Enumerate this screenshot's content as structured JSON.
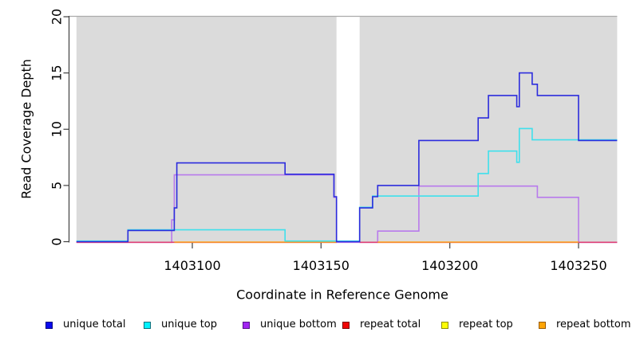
{
  "chart_data": {
    "type": "line",
    "subtype": "step-coverage",
    "title": "",
    "xlabel": "Coordinate in Reference Genome",
    "ylabel": "Read Coverage Depth",
    "x_ticks": [
      1403100,
      1403150,
      1403200,
      1403250
    ],
    "y_ticks": [
      0,
      5,
      10,
      15,
      20
    ],
    "ylim": [
      0,
      20
    ],
    "x_range": [
      1403055,
      1403265
    ],
    "coverage_gap_region": [
      1403156,
      1403165
    ],
    "background_regions": [
      [
        1403055,
        1403156
      ],
      [
        1403165,
        1403265
      ]
    ],
    "colors": {
      "panel": "#dbdbdb",
      "panel_top_edge": "#ababab",
      "axis": "#404040",
      "text": "#000000"
    },
    "series": [
      {
        "name": "unique bottom",
        "line_color": "#b87aec",
        "zero_offset": 0.8,
        "segments": [
          [
            [
              1403055,
              0
            ],
            [
              1403092,
              2
            ],
            [
              1403093,
              6
            ],
            [
              1403155,
              4
            ],
            [
              1403156,
              0
            ],
            [
              1403172,
              1
            ],
            [
              1403188,
              5
            ],
            [
              1403234,
              4
            ],
            [
              1403250,
              0
            ],
            [
              1403265,
              0
            ]
          ]
        ]
      },
      {
        "name": "repeat top",
        "line_color": "#f0e63c",
        "zero_offset": 0.8,
        "segments": [
          [
            [
              1403093,
              0
            ],
            [
              1403156,
              0
            ]
          ],
          [
            [
              1403172,
              0
            ],
            [
              1403250,
              0
            ]
          ]
        ]
      },
      {
        "name": "repeat total",
        "line_color": "#df4077",
        "zero_offset": 0.8,
        "segments": [
          [
            [
              1403055,
              0
            ],
            [
              1403156,
              0
            ]
          ],
          [
            [
              1403165,
              0
            ],
            [
              1403265,
              0
            ]
          ]
        ]
      },
      {
        "name": "repeat bottom",
        "line_color": "#ffa41c",
        "zero_offset": 0.5,
        "segments": [
          [
            [
              1403093,
              0
            ],
            [
              1403156,
              0
            ]
          ],
          [
            [
              1403172,
              0
            ],
            [
              1403250,
              0
            ]
          ]
        ]
      },
      {
        "name": "unique top",
        "line_color": "#3fe0ec",
        "zero_offset": -0.8,
        "segments": [
          [
            [
              1403055,
              0
            ],
            [
              1403075,
              1
            ],
            [
              1403136,
              0
            ],
            [
              1403165,
              3
            ],
            [
              1403170,
              4
            ],
            [
              1403211,
              6
            ],
            [
              1403215,
              8
            ],
            [
              1403226,
              7
            ],
            [
              1403227,
              10
            ],
            [
              1403232,
              9
            ],
            [
              1403265,
              9
            ]
          ]
        ]
      },
      {
        "name": "unique total",
        "line_color": "#2c2cdd",
        "zero_offset": 0,
        "segments": [
          [
            [
              1403055,
              0
            ],
            [
              1403075,
              1
            ],
            [
              1403093,
              3
            ],
            [
              1403094,
              7
            ],
            [
              1403136,
              6
            ],
            [
              1403155,
              4
            ],
            [
              1403156,
              0
            ],
            [
              1403165,
              3
            ],
            [
              1403170,
              4
            ],
            [
              1403172,
              5
            ],
            [
              1403188,
              9
            ],
            [
              1403211,
              11
            ],
            [
              1403215,
              13
            ],
            [
              1403226,
              12
            ],
            [
              1403227,
              15
            ],
            [
              1403232,
              14
            ],
            [
              1403234,
              13
            ],
            [
              1403250,
              9
            ],
            [
              1403265,
              9
            ]
          ]
        ]
      }
    ],
    "legend": [
      {
        "label": "unique total",
        "fill": "#0a0aee",
        "border": "#050580"
      },
      {
        "label": "unique top",
        "fill": "#00f2ff",
        "border": "#0a6e7a"
      },
      {
        "label": "unique bottom",
        "fill": "#a226f2",
        "border": "#57128a"
      },
      {
        "label": "repeat total",
        "fill": "#f00505",
        "border": "#7a0303"
      },
      {
        "label": "repeat top",
        "fill": "#fdfd05",
        "border": "#8f8f05"
      },
      {
        "label": "repeat bottom",
        "fill": "#ffa505",
        "border": "#995c05"
      }
    ]
  }
}
